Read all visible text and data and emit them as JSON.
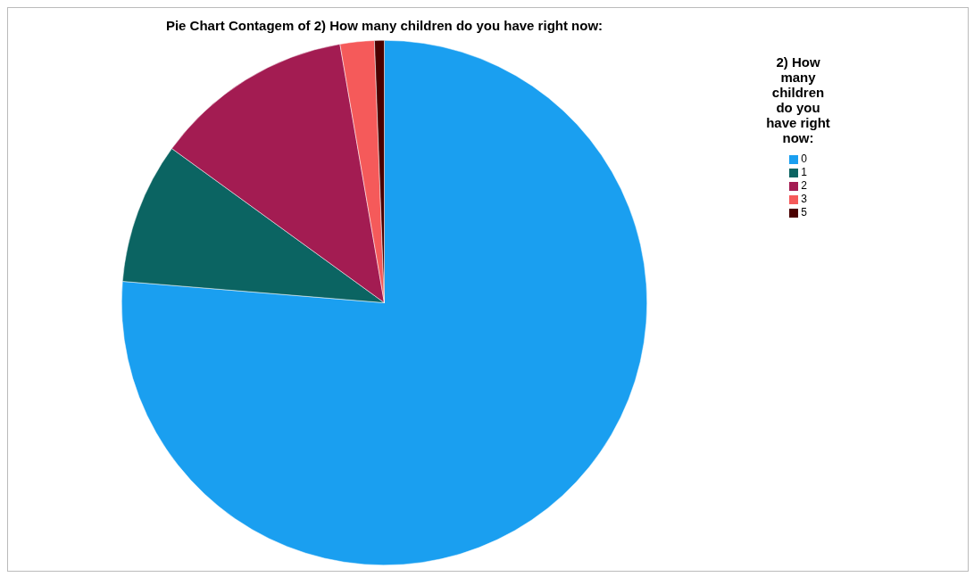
{
  "chart_data": {
    "type": "pie",
    "title": "Pie Chart Contagem of 2) How many children do you have right now:",
    "legend_title": "2) How many children do you have right now:",
    "legend": "top right",
    "categories": [
      "0",
      "1",
      "2",
      "3",
      "5"
    ],
    "values": [
      76.3,
      8.7,
      12.3,
      2.1,
      0.6
    ],
    "colors": [
      "#1a9ff0",
      "#0b6462",
      "#a31c52",
      "#f55a5a",
      "#4a0000"
    ]
  }
}
